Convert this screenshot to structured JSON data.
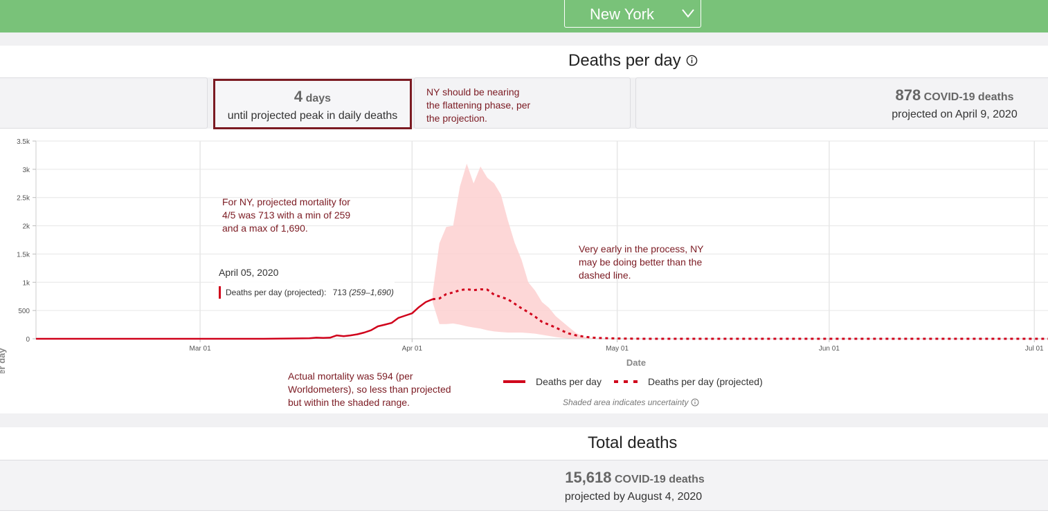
{
  "header": {
    "state_selector": {
      "selected": "New York",
      "icon": "chevron-down-icon"
    }
  },
  "deaths_per_day": {
    "title": "Deaths per day",
    "peak_card": {
      "value": "4",
      "unit": "days",
      "caption": "until projected peak in daily deaths"
    },
    "max_card": {
      "value": "878",
      "unit": "COVID-19 deaths",
      "caption": "projected on April 9, 2020"
    }
  },
  "annotations": {
    "flattening": [
      "NY should be nearing",
      "the flattening phase, per",
      "the projection."
    ],
    "projection_detail": [
      "For NY, projected mortality for",
      "4/5 was 713 with a min of 259",
      "and a max of 1,690."
    ],
    "early_process": [
      "Very early in the process, NY",
      "may be doing better than the",
      "dashed line."
    ],
    "actual": [
      "Actual mortality was 594 (per",
      "Worldometers), so less than projected",
      "but within the shaded range."
    ]
  },
  "tooltip": {
    "date": "April 05, 2020",
    "label": "Deaths per day (projected):",
    "value": "713",
    "range": "(259–1,690)",
    "color": "#d0021b"
  },
  "legend": {
    "actual": "Deaths per day",
    "projected": "Deaths per day (projected)",
    "note": "Shaded area indicates uncertainty"
  },
  "total_deaths": {
    "title": "Total deaths",
    "value": "15,618",
    "unit": "COVID-19 deaths",
    "caption": "projected by August 4, 2020"
  },
  "chart_data": {
    "type": "line",
    "xlabel": "Date",
    "ylabel": "Deaths per day",
    "x_range": [
      "2020-02-06",
      "2020-07-03"
    ],
    "ylim": [
      0,
      3500
    ],
    "x_ticks": [
      {
        "date": "2020-03-01",
        "label": "Mar 01"
      },
      {
        "date": "2020-04-01",
        "label": "Apr 01"
      },
      {
        "date": "2020-05-01",
        "label": "May 01"
      },
      {
        "date": "2020-06-01",
        "label": "Jun 01"
      },
      {
        "date": "2020-07-01",
        "label": "Jul 01"
      }
    ],
    "y_ticks": [
      {
        "value": 0,
        "label": "0"
      },
      {
        "value": 500,
        "label": "500"
      },
      {
        "value": 1000,
        "label": "1k"
      },
      {
        "value": 1500,
        "label": "1.5k"
      },
      {
        "value": 2000,
        "label": "2k"
      },
      {
        "value": 2500,
        "label": "2.5k"
      },
      {
        "value": 3000,
        "label": "3k"
      },
      {
        "value": 3500,
        "label": "3.5k"
      }
    ],
    "grid": true,
    "colors": {
      "line": "#d0021b",
      "band": "#fdd0d0"
    },
    "series": [
      {
        "name": "Deaths per day",
        "style": "solid",
        "points": [
          [
            "2020-02-06",
            0
          ],
          [
            "2020-03-01",
            0
          ],
          [
            "2020-03-10",
            0
          ],
          [
            "2020-03-14",
            5
          ],
          [
            "2020-03-17",
            10
          ],
          [
            "2020-03-18",
            20
          ],
          [
            "2020-03-19",
            15
          ],
          [
            "2020-03-20",
            20
          ],
          [
            "2020-03-21",
            60
          ],
          [
            "2020-03-22",
            45
          ],
          [
            "2020-03-23",
            60
          ],
          [
            "2020-03-24",
            80
          ],
          [
            "2020-03-25",
            110
          ],
          [
            "2020-03-26",
            150
          ],
          [
            "2020-03-27",
            220
          ],
          [
            "2020-03-28",
            250
          ],
          [
            "2020-03-29",
            280
          ],
          [
            "2020-03-30",
            370
          ],
          [
            "2020-03-31",
            410
          ],
          [
            "2020-04-01",
            450
          ],
          [
            "2020-04-02",
            560
          ],
          [
            "2020-04-03",
            650
          ],
          [
            "2020-04-04",
            700
          ]
        ]
      },
      {
        "name": "Deaths per day (projected)",
        "style": "dashed",
        "points": [
          [
            "2020-04-04",
            700
          ],
          [
            "2020-04-05",
            713
          ],
          [
            "2020-04-06",
            790
          ],
          [
            "2020-04-07",
            820
          ],
          [
            "2020-04-08",
            860
          ],
          [
            "2020-04-09",
            878
          ],
          [
            "2020-04-10",
            860
          ],
          [
            "2020-04-11",
            875
          ],
          [
            "2020-04-12",
            870
          ],
          [
            "2020-04-13",
            780
          ],
          [
            "2020-04-14",
            740
          ],
          [
            "2020-04-15",
            700
          ],
          [
            "2020-04-16",
            620
          ],
          [
            "2020-04-17",
            540
          ],
          [
            "2020-04-18",
            470
          ],
          [
            "2020-04-19",
            390
          ],
          [
            "2020-04-20",
            300
          ],
          [
            "2020-04-21",
            250
          ],
          [
            "2020-04-22",
            200
          ],
          [
            "2020-04-23",
            140
          ],
          [
            "2020-04-24",
            90
          ],
          [
            "2020-04-25",
            60
          ],
          [
            "2020-04-26",
            40
          ],
          [
            "2020-04-27",
            25
          ],
          [
            "2020-04-28",
            15
          ],
          [
            "2020-05-01",
            5
          ],
          [
            "2020-05-05",
            0
          ],
          [
            "2020-07-03",
            0
          ]
        ]
      }
    ],
    "uncertainty_band": {
      "name": "Shaded area indicates uncertainty",
      "upper": [
        [
          "2020-04-04",
          800
        ],
        [
          "2020-04-05",
          1690
        ],
        [
          "2020-04-06",
          1980
        ],
        [
          "2020-04-07",
          2000
        ],
        [
          "2020-04-08",
          2700
        ],
        [
          "2020-04-09",
          3100
        ],
        [
          "2020-04-10",
          2750
        ],
        [
          "2020-04-11",
          3050
        ],
        [
          "2020-04-12",
          2850
        ],
        [
          "2020-04-13",
          2750
        ],
        [
          "2020-04-14",
          2550
        ],
        [
          "2020-04-15",
          2100
        ],
        [
          "2020-04-16",
          1700
        ],
        [
          "2020-04-17",
          1400
        ],
        [
          "2020-04-18",
          1000
        ],
        [
          "2020-04-19",
          850
        ],
        [
          "2020-04-20",
          650
        ],
        [
          "2020-04-21",
          550
        ],
        [
          "2020-04-22",
          400
        ],
        [
          "2020-04-23",
          300
        ],
        [
          "2020-04-24",
          200
        ],
        [
          "2020-04-25",
          100
        ],
        [
          "2020-04-26",
          40
        ],
        [
          "2020-04-28",
          5
        ]
      ],
      "lower": [
        [
          "2020-04-04",
          650
        ],
        [
          "2020-04-05",
          259
        ],
        [
          "2020-04-06",
          260
        ],
        [
          "2020-04-07",
          270
        ],
        [
          "2020-04-08",
          250
        ],
        [
          "2020-04-09",
          220
        ],
        [
          "2020-04-10",
          200
        ],
        [
          "2020-04-11",
          180
        ],
        [
          "2020-04-12",
          150
        ],
        [
          "2020-04-13",
          130
        ],
        [
          "2020-04-14",
          120
        ],
        [
          "2020-04-15",
          110
        ],
        [
          "2020-04-16",
          110
        ],
        [
          "2020-04-17",
          110
        ],
        [
          "2020-04-18",
          100
        ],
        [
          "2020-04-19",
          90
        ],
        [
          "2020-04-20",
          70
        ],
        [
          "2020-04-21",
          50
        ],
        [
          "2020-04-22",
          30
        ],
        [
          "2020-04-23",
          15
        ],
        [
          "2020-04-24",
          5
        ],
        [
          "2020-04-28",
          0
        ]
      ]
    }
  }
}
